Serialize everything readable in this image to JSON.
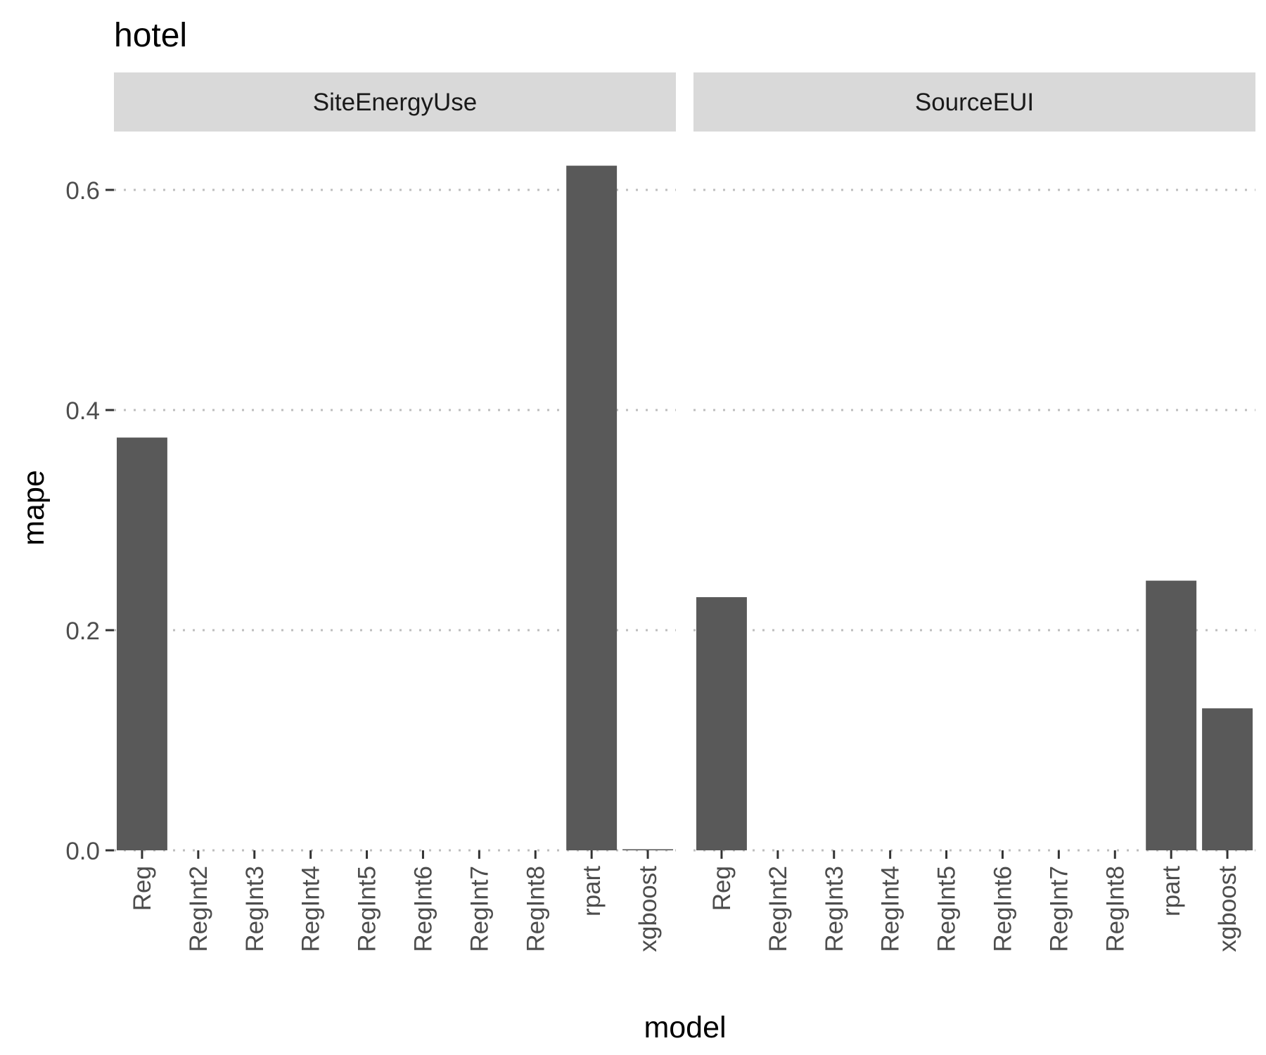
{
  "chart_data": {
    "type": "bar",
    "title": "hotel",
    "xlabel": "model",
    "ylabel": "mape",
    "ylim": [
      0,
      0.62
    ],
    "yticks": [
      0.0,
      0.2,
      0.4,
      0.6
    ],
    "ytick_labels": [
      "0.0",
      "0.2",
      "0.4",
      "0.6"
    ],
    "grid": "major horizontal, dotted",
    "legend": "none",
    "bar_color": "#595959",
    "categories": [
      "Reg",
      "RegInt2",
      "RegInt3",
      "RegInt4",
      "RegInt5",
      "RegInt6",
      "RegInt7",
      "RegInt8",
      "rpart",
      "xgboost"
    ],
    "panels": [
      {
        "name": "SiteEnergyUse",
        "values": [
          0.375,
          0,
          0,
          0,
          0,
          0,
          0,
          0,
          0.622,
          0.001
        ]
      },
      {
        "name": "SourceEUI",
        "values": [
          0.23,
          0,
          0,
          0,
          0,
          0,
          0,
          0,
          0.245,
          0.129
        ]
      }
    ]
  }
}
